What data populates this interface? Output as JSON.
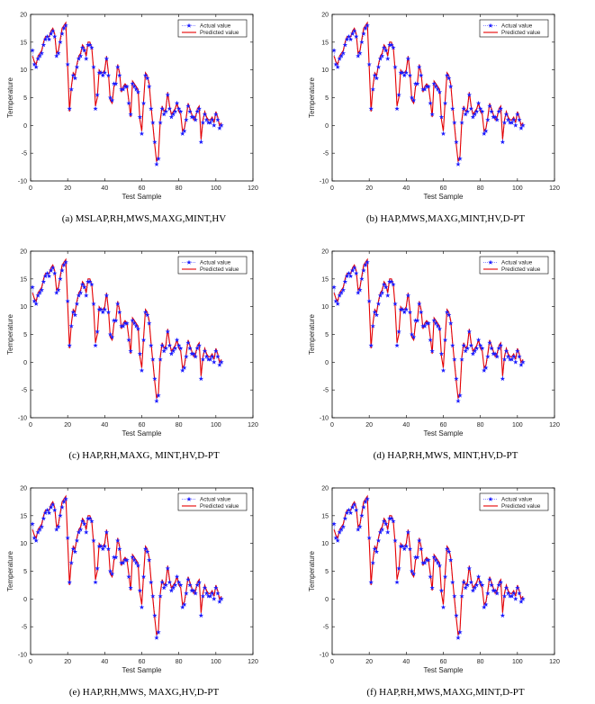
{
  "figure": {
    "legend": {
      "actual": "Actual value",
      "predicted": "Predicted value"
    },
    "colors": {
      "actual": "#1a1aff",
      "predicted": "#e60000"
    },
    "panels": [
      {
        "caption": "(a)  MSLAP,RH,MWS,MAXG,MINT,HV"
      },
      {
        "caption": "(b)  HAP,MWS,MAXG,MINT,HV,D-PT"
      },
      {
        "caption": "(c)  HAP,RH,MAXG, MINT,HV,D-PT"
      },
      {
        "caption": "(d)  HAP,RH,MWS, MINT,HV,D-PT"
      },
      {
        "caption": "(e)  HAP,RH,MWS, MAXG,HV,D-PT"
      },
      {
        "caption": "(f)  HAP,RH,MWS,MAXG,MINT,D-PT"
      }
    ]
  },
  "chart_data": {
    "type": "line",
    "xlabel": "Test Sample",
    "ylabel": "Temperature",
    "xlim": [
      0,
      120
    ],
    "ylim": [
      -10,
      20
    ],
    "xticks": [
      0,
      20,
      40,
      60,
      80,
      100,
      120
    ],
    "yticks": [
      -10,
      -5,
      0,
      5,
      10,
      15,
      20
    ],
    "series": [
      {
        "name": "Actual value",
        "marker": "star",
        "values": [
          13.5,
          11.0,
          10.5,
          12.0,
          12.5,
          13.0,
          14.5,
          15.5,
          16.0,
          15.5,
          16.5,
          17.0,
          16.0,
          12.5,
          13.0,
          15.0,
          16.5,
          17.5,
          18.0,
          11.0,
          3.0,
          6.5,
          9.0,
          8.5,
          10.5,
          12.0,
          12.5,
          14.0,
          13.5,
          12.0,
          14.5,
          14.5,
          14.0,
          10.5,
          3.0,
          5.5,
          9.5,
          9.5,
          9.0,
          9.5,
          12.0,
          9.0,
          5.0,
          4.5,
          7.5,
          7.5,
          10.5,
          9.0,
          6.5,
          6.5,
          7.0,
          7.0,
          4.0,
          2.0,
          7.5,
          7.0,
          6.5,
          6.0,
          1.5,
          -1.5,
          4.0,
          9.0,
          8.5,
          7.0,
          3.0,
          0.5,
          -3.0,
          -7.0,
          -6.0,
          0.5,
          3.0,
          2.0,
          2.5,
          5.5,
          3.0,
          1.5,
          2.0,
          2.5,
          4.0,
          3.0,
          2.5,
          -1.5,
          -1.0,
          1.0,
          3.5,
          2.5,
          1.5,
          1.5,
          1.0,
          2.5,
          3.0,
          -3.0,
          0.5,
          2.0,
          1.0,
          0.5,
          0.5,
          1.0,
          0.0,
          2.0,
          1.0,
          -0.5,
          0.0
        ]
      },
      {
        "name": "Predicted value",
        "values": [
          12.5,
          11.5,
          11.0,
          12.5,
          13.0,
          13.5,
          15.0,
          16.0,
          16.0,
          16.0,
          17.0,
          17.5,
          16.5,
          13.0,
          13.5,
          15.5,
          17.5,
          18.0,
          18.5,
          10.5,
          2.5,
          7.0,
          9.5,
          9.0,
          11.0,
          12.5,
          13.0,
          14.5,
          14.0,
          12.5,
          15.0,
          15.0,
          14.0,
          10.0,
          3.5,
          5.0,
          10.0,
          9.5,
          9.5,
          10.0,
          12.5,
          9.5,
          4.5,
          4.0,
          7.0,
          7.5,
          11.0,
          9.5,
          6.0,
          7.0,
          7.5,
          7.0,
          4.5,
          1.5,
          8.0,
          7.5,
          7.0,
          6.5,
          1.0,
          -1.0,
          4.5,
          9.5,
          9.0,
          7.5,
          3.5,
          0.0,
          -3.5,
          -6.5,
          -5.5,
          1.0,
          3.5,
          2.5,
          3.0,
          6.0,
          3.5,
          2.0,
          2.5,
          3.0,
          4.0,
          2.5,
          2.0,
          -1.0,
          -0.5,
          1.5,
          4.0,
          3.0,
          2.0,
          1.0,
          1.5,
          3.0,
          3.5,
          -2.5,
          1.0,
          2.5,
          1.5,
          1.0,
          1.0,
          1.5,
          0.5,
          2.5,
          1.5,
          0.0,
          0.5
        ]
      }
    ]
  }
}
